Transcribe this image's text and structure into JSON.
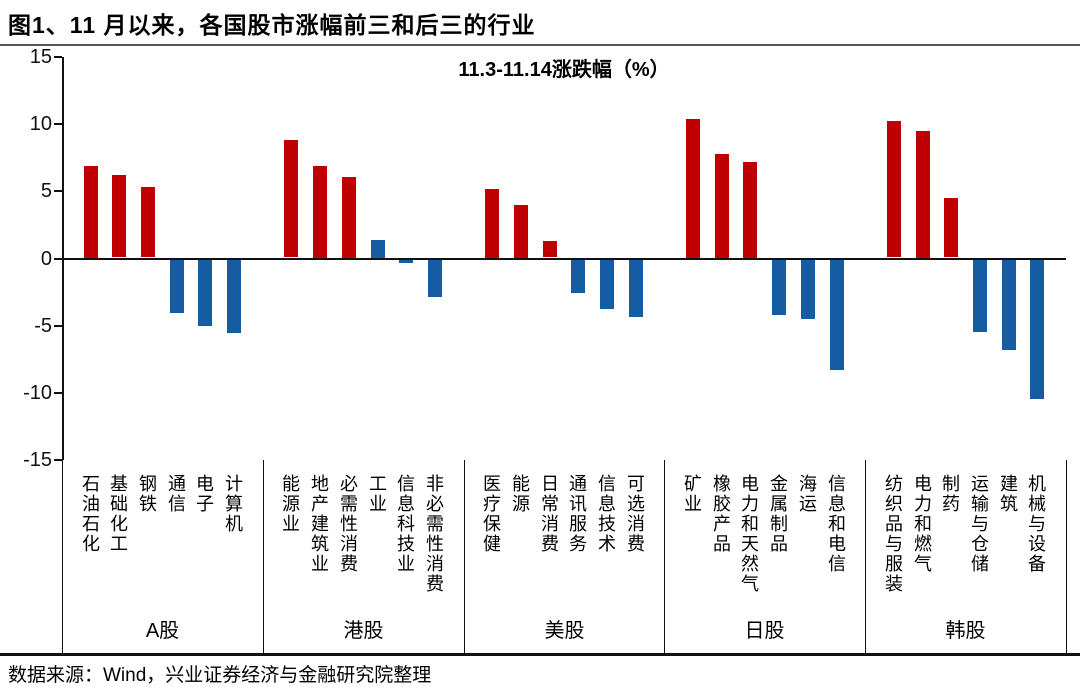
{
  "page": {
    "title": "图1、11 月以来，各国股市涨幅前三和后三的行业",
    "source_note": "数据来源：Wind，兴业证券经济与金融研究院整理"
  },
  "chart_data": {
    "type": "bar",
    "title": "11.3-11.14涨跌幅（%）",
    "xlabel": "",
    "ylabel": "",
    "ylim": [
      -15,
      15
    ],
    "yticks": [
      15,
      10,
      5,
      0,
      -5,
      -10,
      -15
    ],
    "grid": false,
    "legend_position": "none",
    "top3_color": "#C00000",
    "bottom3_color": "#155CA2",
    "axis_color": "#111111",
    "groups": [
      {
        "market": "A股",
        "sectors": [
          "石油石化",
          "基础化工",
          "钢铁",
          "通信",
          "电子",
          "计算机"
        ],
        "values": [
          6.9,
          6.2,
          5.3,
          -4.0,
          -5.0,
          -5.5
        ]
      },
      {
        "market": "港股",
        "sectors": [
          "能源业",
          "地产建筑业",
          "必需性消费",
          "工业",
          "信息科技业",
          "非必需性消费"
        ],
        "values": [
          8.8,
          6.9,
          6.1,
          1.4,
          -0.3,
          -2.8
        ]
      },
      {
        "market": "美股",
        "sectors": [
          "医疗保健",
          "能源",
          "日常消费",
          "通讯服务",
          "信息技术",
          "可选消费"
        ],
        "values": [
          5.2,
          4.0,
          1.3,
          -2.5,
          -3.7,
          -4.3
        ]
      },
      {
        "market": "日股",
        "sectors": [
          "矿业",
          "橡胶产品",
          "电力和天然气",
          "金属制品",
          "海运",
          "信息和电信"
        ],
        "values": [
          10.4,
          7.8,
          7.2,
          -4.2,
          -4.5,
          -8.3
        ]
      },
      {
        "market": "韩股",
        "sectors": [
          "纺织品与服装",
          "电力和燃气",
          "制药",
          "运输与仓储",
          "建筑",
          "机械与设备"
        ],
        "values": [
          10.2,
          9.5,
          4.5,
          -5.4,
          -6.8,
          -10.4
        ]
      }
    ]
  }
}
